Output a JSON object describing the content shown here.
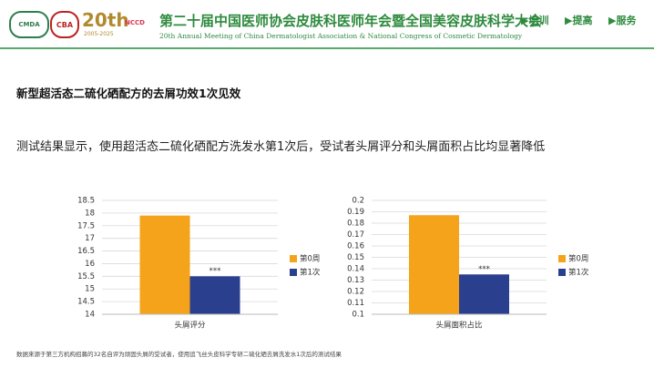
{
  "header": {
    "logos": [
      "CMDA",
      "CBA",
      "20th",
      "2005-2025",
      "NCCD"
    ],
    "title": "第二十届中国医师协会皮肤科医师年会暨全国美容皮肤科学大会",
    "subtitle": "20th Annual Meeting of China Dermatologist Association & National Congress of Cosmetic Dermatology",
    "nav": [
      "培训",
      "提高",
      "服务"
    ]
  },
  "slide": {
    "title": "新型超活态二硫化硒配方的去屑功效1次见效",
    "text": "测试结果显示，使用超活态二硫化硒配方洗发水第1次后，受试者头屑评分和头屑面积占比均显著降低",
    "footnote": "数据来源于第三方机构招募的32名自评为顽固头屑的受试者，使用追飞丝头皮科学专研二硫化硒去屑洗发水1次后的测试结果"
  },
  "chart_data": [
    {
      "type": "bar",
      "categories": [
        "头屑评分"
      ],
      "series": [
        {
          "name": "第0周",
          "color": "#f5a31a",
          "values": [
            17.9
          ]
        },
        {
          "name": "第1次",
          "color": "#2b3f8f",
          "values": [
            15.5
          ]
        }
      ],
      "ylim": [
        14,
        18.5
      ],
      "yticks": [
        14,
        14.5,
        15,
        15.5,
        16,
        16.5,
        17,
        17.5,
        18,
        18.5
      ],
      "grid": true,
      "annotation": "***"
    },
    {
      "type": "bar",
      "categories": [
        "头屑面积占比"
      ],
      "series": [
        {
          "name": "第0周",
          "color": "#f5a31a",
          "values": [
            0.187
          ]
        },
        {
          "name": "第1次",
          "color": "#2b3f8f",
          "values": [
            0.135
          ]
        }
      ],
      "ylim": [
        0.1,
        0.2
      ],
      "yticks": [
        0.1,
        0.11,
        0.12,
        0.13,
        0.14,
        0.15,
        0.16,
        0.17,
        0.18,
        0.19,
        0.2
      ],
      "grid": true,
      "annotation": "***"
    }
  ]
}
